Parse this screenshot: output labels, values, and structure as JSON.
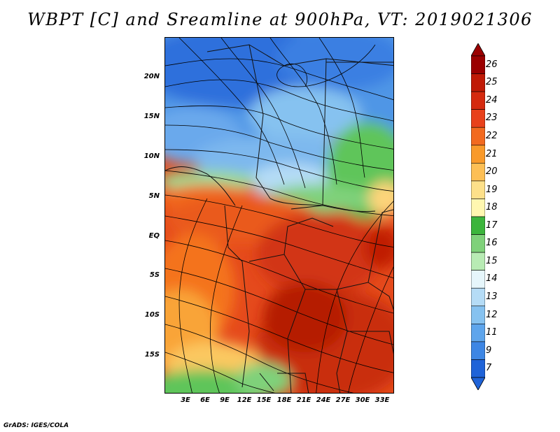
{
  "title": "WBPT [C] and Sreamline at 900hPa, VT: 2019021306",
  "credit": "GrADS: IGES/COLA",
  "map": {
    "lon_range": [
      0,
      35
    ],
    "lat_range": [
      -20,
      25
    ],
    "lat_ticks": [
      "20N",
      "15N",
      "10N",
      "5N",
      "EQ",
      "5S",
      "10S",
      "15S"
    ],
    "lon_ticks": [
      "3E",
      "6E",
      "9E",
      "12E",
      "15E",
      "18E",
      "21E",
      "24E",
      "27E",
      "30E",
      "33E"
    ],
    "variable": "Wet-bulb potential temperature (C) with streamlines at 900hPa"
  },
  "colorbar": {
    "levels": [
      "26",
      "25",
      "24",
      "23",
      "22",
      "21",
      "20",
      "19",
      "18",
      "17",
      "16",
      "15",
      "14",
      "13",
      "12",
      "11",
      "9",
      "7"
    ],
    "colors": [
      "#9b0000",
      "#c01a06",
      "#d52a0f",
      "#e8411b",
      "#f26a1f",
      "#f99a2a",
      "#fdbf55",
      "#fde08a",
      "#fff7b0",
      "#3cb53c",
      "#7fd17a",
      "#b8ebb4",
      "#e6f6fb",
      "#b5dcf6",
      "#86c2f0",
      "#5ea5ec",
      "#3d86e4",
      "#1f63d8"
    ]
  }
}
